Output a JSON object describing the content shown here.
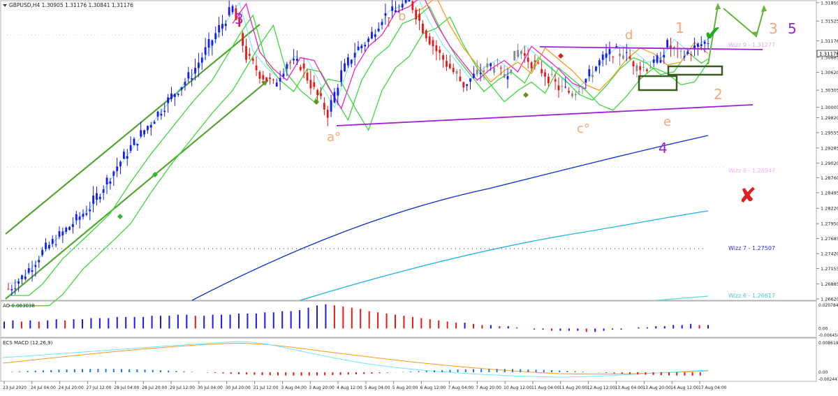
{
  "header": {
    "symbol_info": "GBPUSD,H4  1.30905 1.31176 1.30841 1.31176",
    "current_price": "1.31176"
  },
  "subwindows": {
    "ao_label": "AO 0.003038",
    "macd_label": "ECS MACD (12,26,9)"
  },
  "colors": {
    "bull_candle": "#1a1af0",
    "bear_candle": "#e81818",
    "neutral_candle": "#8a8a8a",
    "ema_fast": "#6fe6ff",
    "ema_green": "#3bd93b",
    "ema_magenta": "#ee22cc",
    "ema_orange": "#ff9a1f",
    "ma_200": "#0b2fd0",
    "ma_long": "#1fb0ef",
    "channel": "#55a532",
    "triangle": "#a020d8",
    "wave_count": "#9a22d8",
    "abc_labels": "#f5a77a",
    "wizz_9": "#e9a6e6",
    "wizz_8": "#f2b0f0",
    "wizz_7": "#2a2ae0",
    "wizz_6": "#40c8d0",
    "check": "#22aa22",
    "cross": "#e02020"
  },
  "annotations": {
    "wave_3": "3",
    "wave_4": "4",
    "wave_5": "5",
    "sub_a": "a°",
    "sub_b": "b",
    "sub_c": "c°",
    "sub_d": "d",
    "sub_e": "e",
    "alt_1": "1",
    "alt_2": "2",
    "alt_3": "3",
    "check_mark": "✔",
    "cross_mark": "✘"
  },
  "chart_data": {
    "type": "candlestick",
    "title": "",
    "symbol": "GBPUSD",
    "timeframe": "H4",
    "ohlc_header": {
      "open": 1.30905,
      "high": 1.31176,
      "low": 1.30841,
      "close": 1.31176
    },
    "price_axis": {
      "ylim": [
        1.2662,
        1.3186
      ],
      "ticks": [
        "1.31850",
        "1.31525",
        "1.31176",
        "1.30885",
        "1.30620",
        "1.30305",
        "1.30005",
        "1.29820",
        "1.29555",
        "1.29285",
        "1.29020",
        "1.28760",
        "1.28495",
        "1.28220",
        "1.27950",
        "1.27685",
        "1.27420",
        "1.27155",
        "1.26885",
        "1.26620"
      ]
    },
    "time_axis": {
      "labels": [
        "23 Jul 2020",
        "24 Jul 04:00",
        "24 Jul 20:00",
        "27 Jul 12:00",
        "28 Jul 04:00",
        "28 Jul 20:00",
        "29 Jul 12:00",
        "30 Jul 04:00",
        "30 Jul 20:00",
        "31 Jul 12:00",
        "3 Aug 04:00",
        "3 Aug 20:00",
        "4 Aug 12:00",
        "5 Aug 04:00",
        "5 Aug 20:00",
        "6 Aug 12:00",
        "7 Aug 04:00",
        "7 Aug 20:00",
        "10 Aug 12:00",
        "11 Aug 04:00",
        "11 Aug 20:00",
        "12 Aug 12:00",
        "13 Aug 04:00",
        "13 Aug 20:00",
        "14 Aug 12:00",
        "17 Aug 04:00"
      ]
    },
    "key_levels": [
      {
        "name": "Wizz 9",
        "value": 1.31277,
        "label": "Wizz 9 - 1.31277"
      },
      {
        "name": "Wizz 8",
        "value": 1.28947,
        "label": "Wizz 8 - 1.28947"
      },
      {
        "name": "Wizz 7",
        "value": 1.27507,
        "label": "Wizz 7 - 1.27507"
      },
      {
        "name": "Wizz 6",
        "value": 1.26617,
        "label": "Wizz 6 - 1.26617"
      }
    ],
    "ao": {
      "label": "AO 0.003038",
      "ticks": [
        "0.020784",
        "0.00",
        "-0.006458"
      ],
      "values": [
        0.006,
        0.007,
        0.006,
        0.007,
        0.006,
        0.007,
        0.008,
        0.007,
        0.008,
        0.008,
        0.009,
        0.009,
        0.009,
        0.01,
        0.01,
        0.01,
        0.01,
        0.011,
        0.011,
        0.011,
        0.012,
        0.012,
        0.011,
        0.011,
        0.012,
        0.012,
        0.012,
        0.013,
        0.013,
        0.013,
        0.014,
        0.014,
        0.015,
        0.015,
        0.016,
        0.018,
        0.02,
        0.021,
        0.02,
        0.019,
        0.018,
        0.017,
        0.015,
        0.014,
        0.013,
        0.012,
        0.011,
        0.01,
        0.009,
        0.008,
        0.007,
        0.006,
        0.005,
        0.005,
        0.004,
        0.003,
        0.003,
        0.002,
        0.002,
        0.001,
        0.0,
        -0.001,
        -0.001,
        -0.002,
        -0.002,
        -0.002,
        -0.002,
        -0.003,
        -0.003,
        -0.002,
        -0.001,
        -0.001,
        0.0,
        0.001,
        0.001,
        0.002,
        0.002,
        0.003,
        0.003,
        0.004,
        0.003,
        0.003
      ],
      "bar_colors_rule": "blue when rising, red when falling"
    },
    "macd": {
      "label": "ECS MACD (12,26,9)",
      "ticks": [
        "0.008619",
        "0.00",
        "-0.002447"
      ]
    }
  }
}
